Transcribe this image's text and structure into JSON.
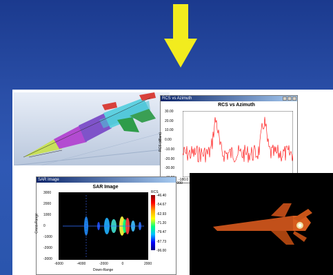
{
  "rcs_window": {
    "title": "RCS vs Azimuth",
    "plot_title": "RCS vs Azimuth",
    "ylabel": "RCS (dBsm)",
    "yticks": [
      "30.00",
      "20.00",
      "10.00",
      "0.00",
      "-10.00",
      "-20.00",
      "-30.00",
      "-40.00"
    ],
    "xticks": [
      "-180.0"
    ],
    "legend": "0.000"
  },
  "sar_window": {
    "title": "SAR Image",
    "plot_title": "SAR Image",
    "ylabel": "Cross-Range",
    "xlabel": "Down-Range",
    "yticks": [
      "3000",
      "2000",
      "1000",
      "0",
      "-1000",
      "-2000",
      "-3000"
    ],
    "xticks": [
      "-6000",
      "-4000",
      "-2000",
      "0",
      "2000"
    ],
    "colorbar_label": "RCS",
    "colorbar_ticks": [
      "-46.40",
      "-54.67",
      "-62.93",
      "-71.20",
      "-79.47",
      "-87.73",
      "-96.00"
    ]
  },
  "colors": {
    "background": "#2a4fa8",
    "arrow": "#f2ec1e",
    "rcs_trace": "#ff0000",
    "missile_render": "#d2571a"
  }
}
